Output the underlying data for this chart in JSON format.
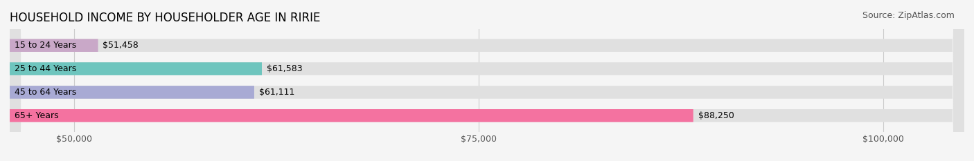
{
  "title": "HOUSEHOLD INCOME BY HOUSEHOLDER AGE IN RIRIE",
  "source": "Source: ZipAtlas.com",
  "categories": [
    "15 to 24 Years",
    "25 to 44 Years",
    "45 to 64 Years",
    "65+ Years"
  ],
  "values": [
    51458,
    61583,
    61111,
    88250
  ],
  "bar_colors": [
    "#c9a8c8",
    "#6ec5be",
    "#a8aad4",
    "#f472a0"
  ],
  "bar_bg_color": "#e8e8e8",
  "background_color": "#f5f5f5",
  "xmin": 46000,
  "xmax": 105000,
  "xticks": [
    50000,
    75000,
    100000
  ],
  "xtick_labels": [
    "$50,000",
    "$75,000",
    "$100,000"
  ],
  "value_format_prefix": "$",
  "title_fontsize": 12,
  "source_fontsize": 9,
  "label_fontsize": 9,
  "tick_fontsize": 9
}
